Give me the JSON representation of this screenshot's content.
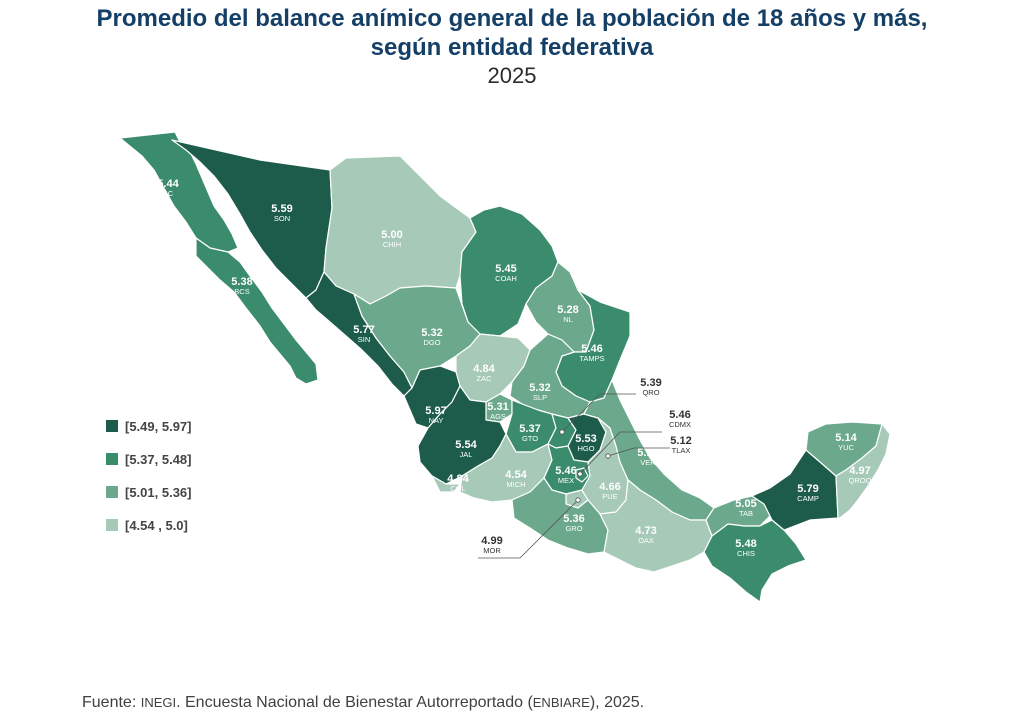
{
  "title_line1": "Promedio del balance anímico general de la población de 18 años y más,",
  "title_line2": "según entidad federativa",
  "year": "2025",
  "colors": {
    "c1": "#1d5c4b",
    "c2": "#3b8c6c",
    "c3": "#6ba88c",
    "c4": "#a6c9b8"
  },
  "legend": [
    {
      "label": "[5.49, 5.97]",
      "cls": "c1"
    },
    {
      "label": "[5.37, 5.48]",
      "cls": "c2"
    },
    {
      "label": "[5.01, 5.36]",
      "cls": "c3"
    },
    {
      "label": "[4.54 , 5.0]",
      "cls": "c4"
    }
  ],
  "states": {
    "BC": {
      "abbr": "BC",
      "value": "5.44"
    },
    "SON": {
      "abbr": "SON",
      "value": "5.59"
    },
    "CHIH": {
      "abbr": "CHIH",
      "value": "5.00"
    },
    "COAH": {
      "abbr": "COAH",
      "value": "5.45"
    },
    "BCS": {
      "abbr": "BCS",
      "value": "5.38"
    },
    "NL": {
      "abbr": "NL",
      "value": "5.28"
    },
    "SIN": {
      "abbr": "SIN",
      "value": "5.77"
    },
    "DGO": {
      "abbr": "DGO",
      "value": "5.32"
    },
    "TAMPS": {
      "abbr": "TAMPS",
      "value": "5.46"
    },
    "ZAC": {
      "abbr": "ZAC",
      "value": "4.84"
    },
    "SLP": {
      "abbr": "SLP",
      "value": "5.32"
    },
    "QRO": {
      "abbr": "QRO",
      "value": "5.39"
    },
    "NAY": {
      "abbr": "NAY",
      "value": "5.97"
    },
    "AGS": {
      "abbr": "AGS",
      "value": "5.31"
    },
    "GTO": {
      "abbr": "GTO",
      "value": "5.37"
    },
    "HGO": {
      "abbr": "HGO",
      "value": "5.53"
    },
    "CDMX": {
      "abbr": "CDMX",
      "value": "5.46"
    },
    "TLAX": {
      "abbr": "TLAX",
      "value": "5.12"
    },
    "JAL": {
      "abbr": "JAL",
      "value": "5.54"
    },
    "MICH": {
      "abbr": "MICH",
      "value": "4.54"
    },
    "MEX": {
      "abbr": "MEX",
      "value": "5.46"
    },
    "PUE": {
      "abbr": "PUE",
      "value": "4.66"
    },
    "VER": {
      "abbr": "VER",
      "value": "5.17"
    },
    "COL": {
      "abbr": "COL",
      "value": "4.84"
    },
    "GRO": {
      "abbr": "GRO",
      "value": "5.36"
    },
    "OAX": {
      "abbr": "OAX",
      "value": "4.73"
    },
    "MOR": {
      "abbr": "MOR",
      "value": "4.99"
    },
    "TAB": {
      "abbr": "TAB",
      "value": "5.05"
    },
    "CHIS": {
      "abbr": "CHIS",
      "value": "5.48"
    },
    "CAMP": {
      "abbr": "CAMP",
      "value": "5.79"
    },
    "YUC": {
      "abbr": "YUC",
      "value": "5.14"
    },
    "QROO": {
      "abbr": "QROO",
      "value": "4.97"
    }
  },
  "source": {
    "prefix": "Fuente: ",
    "org": "INEGI",
    "middle": ". Encuesta Nacional de Bienestar Autorreportado (",
    "acronym": "ENBIARE",
    "suffix": "), 2025."
  }
}
